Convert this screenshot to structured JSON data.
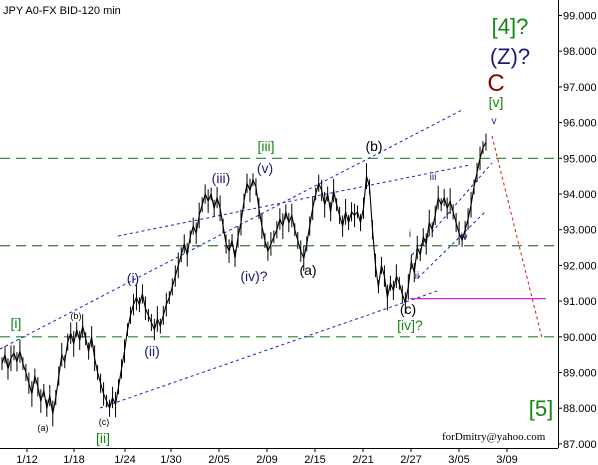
{
  "chart_data": {
    "type": "line",
    "title": "JPY A0-FX BID-120 min",
    "credit": "forDmitry@yahoo.com",
    "ylim": [
      87.0,
      99.0
    ],
    "y_ticks": [
      "99.000",
      "98.000",
      "97.000",
      "96.000",
      "95.000",
      "94.000",
      "93.000",
      "92.000",
      "91.000",
      "90.000",
      "89.000",
      "88.000",
      "87.000"
    ],
    "x_ticks": [
      "1/12",
      "1/18",
      "1/24",
      "1/30",
      "2/05",
      "2/09",
      "2/15",
      "2/21",
      "2/27",
      "3/05",
      "3/09"
    ],
    "grid": false,
    "series": [
      {
        "values": [
          89.25,
          89.5,
          89.1,
          89.4,
          89.55,
          89.3,
          89.6,
          89.25,
          89.0,
          88.7,
          88.4,
          88.9,
          88.6,
          88.2,
          88.5,
          88.0,
          88.35,
          87.85,
          88.3,
          88.9,
          89.5,
          89.3,
          89.85,
          90.1,
          89.8,
          90.2,
          89.9,
          90.3,
          89.95,
          89.6,
          90.0,
          89.4,
          89.0,
          88.7,
          88.4,
          88.2,
          88.0,
          88.3,
          88.1,
          88.6,
          89.1,
          89.6,
          90.2,
          90.6,
          90.9,
          91.1,
          90.9,
          91.2,
          90.8,
          90.6,
          90.4,
          90.2,
          90.5,
          90.3,
          90.6,
          90.9,
          91.1,
          91.4,
          91.7,
          92.0,
          92.3,
          92.6,
          92.3,
          92.8,
          93.1,
          92.9,
          93.4,
          93.7,
          94.0,
          93.8,
          94.0,
          93.6,
          93.9,
          93.6,
          93.1,
          92.6,
          92.4,
          92.7,
          92.2,
          92.8,
          93.2,
          93.8,
          94.3,
          94.1,
          94.4,
          94.2,
          93.6,
          93.1,
          92.7,
          92.4,
          92.6,
          92.8,
          93.0,
          93.3,
          93.1,
          93.5,
          93.2,
          93.4,
          93.0,
          92.7,
          92.4,
          92.2,
          92.6,
          93.1,
          93.6,
          94.0,
          94.3,
          94.1,
          93.7,
          94.0,
          93.5,
          94.1,
          93.7,
          93.4,
          93.1,
          93.5,
          93.2,
          93.5,
          93.4,
          93.5,
          93.2,
          93.6,
          94.5,
          94.2,
          93.0,
          92.0,
          91.4,
          92.0,
          91.7,
          91.1,
          91.5,
          91.3,
          91.7,
          91.5,
          91.2,
          90.95,
          91.4,
          92.1,
          91.8,
          92.5,
          92.3,
          92.8,
          92.6,
          93.2,
          93.0,
          93.4,
          93.9,
          93.7,
          93.9,
          93.6,
          93.8,
          93.5,
          93.2,
          92.9,
          92.7,
          93.0,
          93.3,
          93.7,
          94.2,
          94.6,
          95.0,
          95.3,
          95.45
        ]
      }
    ],
    "annotations": {
      "black": [
        "(a)",
        "(b)",
        "(c)",
        "(a)",
        "(b)",
        "(c)"
      ],
      "navy": [
        "(i)",
        "(ii)",
        "(iii)",
        "(iv)?",
        "(v)",
        "i",
        "ii",
        "iii",
        "iv",
        "v"
      ],
      "green": [
        "[i]",
        "[ii]",
        "[iii]",
        "[iv]?",
        "[v]",
        "[4]?",
        "[5]"
      ],
      "top_labels": [
        "(Z)?",
        "C"
      ]
    },
    "colors": {
      "price": "#000000",
      "channel": "#1f1fbf",
      "green_dash": "#2e7d2e",
      "magenta": "#e020e0",
      "forecast": "#e01010",
      "green_label": "#118811",
      "navy_label": "#1a1a7a",
      "red_label": "#8b0000",
      "axis": "#000000"
    }
  }
}
